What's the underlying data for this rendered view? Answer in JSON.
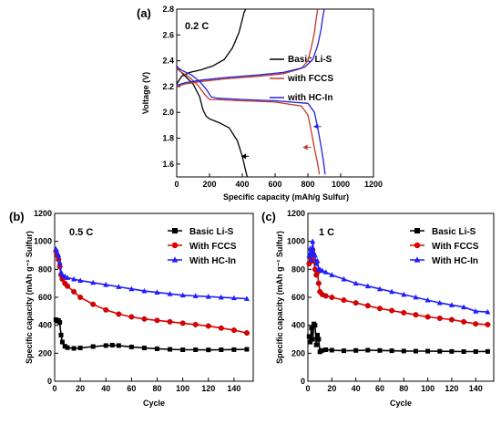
{
  "chart_data": [
    {
      "panel": "(a)",
      "type": "line",
      "title": "0.2 C",
      "xlabel": "Specific capacity (mAh/g Sulfur)",
      "ylabel": "Voltage (V)",
      "xlim": [
        0,
        1200
      ],
      "ylim": [
        1.5,
        2.8
      ],
      "xticks": [
        "0",
        "200",
        "400",
        "600",
        "800",
        "1000",
        "1200"
      ],
      "yticks": [
        "1.6",
        "1.8",
        "2.0",
        "2.2",
        "2.4",
        "2.6",
        "2.8"
      ],
      "legend_position": "right",
      "series": [
        {
          "name": "Basic Li-S",
          "color": "#000000",
          "discharge": {
            "x": [
              0,
              20,
              60,
              100,
              140,
              160,
              180,
              200,
              260,
              320,
              370,
              400,
              420,
              430
            ],
            "y": [
              2.36,
              2.32,
              2.27,
              2.22,
              2.12,
              2.02,
              1.97,
              1.95,
              1.92,
              1.88,
              1.78,
              1.66,
              1.55,
              1.5
            ]
          },
          "charge": {
            "x": [
              0,
              30,
              80,
              150,
              220,
              290,
              340,
              380,
              400,
              410,
              420
            ],
            "y": [
              2.22,
              2.28,
              2.31,
              2.33,
              2.36,
              2.41,
              2.5,
              2.62,
              2.72,
              2.77,
              2.8
            ]
          }
        },
        {
          "name": "with FCCS",
          "color": "#c0392b",
          "discharge": {
            "x": [
              0,
              30,
              80,
              130,
              170,
              200,
              240,
              400,
              600,
              760,
              800,
              820,
              840,
              860,
              870
            ],
            "y": [
              2.34,
              2.31,
              2.27,
              2.21,
              2.14,
              2.1,
              2.1,
              2.09,
              2.08,
              2.05,
              1.98,
              1.86,
              1.72,
              1.6,
              1.52
            ]
          },
          "charge": {
            "x": [
              0,
              50,
              150,
              300,
              500,
              650,
              760,
              800,
              820,
              840,
              850,
              860
            ],
            "y": [
              2.2,
              2.22,
              2.24,
              2.26,
              2.28,
              2.3,
              2.34,
              2.4,
              2.5,
              2.62,
              2.72,
              2.8
            ]
          }
        },
        {
          "name": "with HC-In",
          "color": "#2222dd",
          "discharge": {
            "x": [
              0,
              40,
              90,
              140,
              180,
              210,
              250,
              400,
              600,
              800,
              840,
              860,
              880,
              895,
              905
            ],
            "y": [
              2.35,
              2.32,
              2.29,
              2.24,
              2.18,
              2.12,
              2.11,
              2.1,
              2.09,
              2.07,
              2.0,
              1.88,
              1.74,
              1.62,
              1.52
            ]
          },
          "charge": {
            "x": [
              0,
              50,
              150,
              300,
              500,
              650,
              780,
              830,
              860,
              880,
              890,
              900
            ],
            "y": [
              2.21,
              2.23,
              2.25,
              2.27,
              2.29,
              2.31,
              2.35,
              2.41,
              2.52,
              2.64,
              2.73,
              2.8
            ]
          }
        }
      ]
    },
    {
      "panel": "(b)",
      "type": "scatter",
      "title": "0.5 C",
      "xlabel": "Cycle",
      "ylabel": "Specific capacity  (mAh g⁻¹ Sulfur)",
      "xlim": [
        0,
        155
      ],
      "ylim": [
        0,
        1200
      ],
      "xticks": [
        "0",
        "20",
        "40",
        "60",
        "80",
        "100",
        "120",
        "140"
      ],
      "yticks": [
        "0",
        "200",
        "400",
        "600",
        "800",
        "1000",
        "1200"
      ],
      "legend_position": "top-right",
      "series": [
        {
          "name": "Basic Li-S",
          "color": "#000000",
          "marker": "square",
          "x": [
            1,
            2,
            3,
            4,
            5,
            6,
            8,
            10,
            15,
            20,
            30,
            40,
            45,
            50,
            60,
            70,
            80,
            90,
            100,
            110,
            120,
            130,
            140,
            150
          ],
          "values": [
            440,
            430,
            435,
            420,
            330,
            280,
            250,
            240,
            235,
            238,
            248,
            255,
            258,
            255,
            245,
            238,
            232,
            228,
            225,
            225,
            224,
            225,
            226,
            228
          ]
        },
        {
          "name": "With FCCS",
          "color": "#dd0000",
          "marker": "circle",
          "x": [
            1,
            2,
            3,
            4,
            5,
            6,
            8,
            10,
            15,
            20,
            30,
            40,
            50,
            60,
            70,
            80,
            90,
            100,
            110,
            120,
            130,
            140,
            150
          ],
          "values": [
            930,
            900,
            870,
            820,
            760,
            730,
            700,
            680,
            640,
            600,
            550,
            510,
            480,
            460,
            445,
            435,
            425,
            415,
            405,
            395,
            380,
            365,
            345
          ]
        },
        {
          "name": "With HC-In",
          "color": "#1e1eff",
          "marker": "triangle",
          "x": [
            1,
            2,
            3,
            4,
            5,
            6,
            8,
            10,
            15,
            20,
            30,
            40,
            50,
            60,
            70,
            80,
            90,
            100,
            110,
            120,
            130,
            140,
            150
          ],
          "values": [
            945,
            920,
            900,
            850,
            780,
            760,
            750,
            740,
            730,
            720,
            705,
            690,
            675,
            660,
            645,
            635,
            625,
            615,
            610,
            605,
            600,
            595,
            590
          ]
        }
      ]
    },
    {
      "panel": "(c)",
      "type": "scatter",
      "title": "1 C",
      "xlabel": "Cycle",
      "ylabel": "Specific capacity  (mAh g⁻¹ Sulfur)",
      "xlim": [
        0,
        155
      ],
      "ylim": [
        0,
        1200
      ],
      "xticks": [
        "0",
        "20",
        "40",
        "60",
        "80",
        "100",
        "120",
        "140"
      ],
      "yticks": [
        "0",
        "200",
        "400",
        "600",
        "800",
        "1000",
        "1200"
      ],
      "legend_position": "top-right",
      "series": [
        {
          "name": "Basic Li-S",
          "color": "#000000",
          "marker": "square",
          "x": [
            1,
            2,
            3,
            4,
            5,
            6,
            7,
            8,
            9,
            10,
            12,
            15,
            20,
            30,
            40,
            50,
            60,
            70,
            80,
            90,
            100,
            110,
            120,
            130,
            140,
            150
          ],
          "values": [
            320,
            280,
            380,
            300,
            410,
            400,
            260,
            330,
            300,
            210,
            220,
            225,
            222,
            218,
            220,
            222,
            220,
            218,
            216,
            215,
            215,
            214,
            213,
            212,
            212,
            213
          ]
        },
        {
          "name": "With FCCS",
          "color": "#dd0000",
          "marker": "circle",
          "x": [
            1,
            2,
            3,
            4,
            5,
            6,
            7,
            8,
            9,
            10,
            12,
            15,
            20,
            30,
            40,
            50,
            60,
            70,
            80,
            90,
            100,
            110,
            120,
            130,
            140,
            150
          ],
          "values": [
            840,
            890,
            860,
            940,
            860,
            800,
            760,
            780,
            700,
            640,
            620,
            610,
            600,
            580,
            560,
            540,
            520,
            505,
            490,
            475,
            460,
            450,
            440,
            425,
            410,
            405
          ]
        },
        {
          "name": "With HC-In",
          "color": "#1e1eff",
          "marker": "triangle",
          "x": [
            1,
            2,
            3,
            4,
            5,
            6,
            7,
            8,
            9,
            10,
            12,
            15,
            20,
            30,
            40,
            50,
            60,
            70,
            80,
            90,
            100,
            110,
            120,
            130,
            140,
            150
          ],
          "values": [
            900,
            950,
            870,
            1000,
            920,
            900,
            840,
            860,
            800,
            800,
            790,
            780,
            760,
            730,
            700,
            680,
            660,
            640,
            620,
            600,
            580,
            560,
            545,
            530,
            500,
            495
          ]
        }
      ]
    }
  ]
}
